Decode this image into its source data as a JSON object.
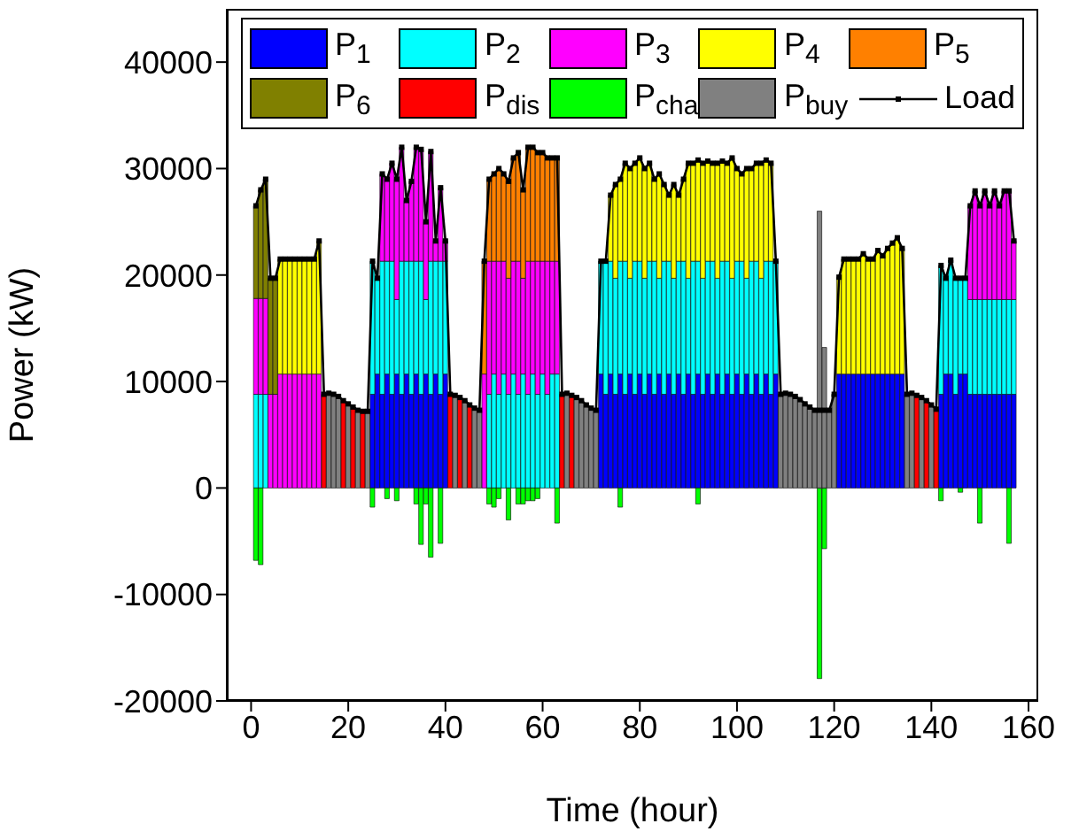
{
  "chart_data": {
    "type": "bar",
    "stacked": true,
    "xlabel": "Time (hour)",
    "ylabel": "Power (kW)",
    "xlim": [
      -5,
      162
    ],
    "xticks": [
      0,
      20,
      40,
      60,
      80,
      100,
      120,
      140,
      160
    ],
    "ylim": [
      -20000,
      45000
    ],
    "yticks": [
      -20000,
      -10000,
      0,
      10000,
      20000,
      30000,
      40000
    ],
    "legend": "top",
    "marker": "square",
    "line_style": "solid",
    "x": [
      1,
      2,
      3,
      4,
      5,
      6,
      7,
      8,
      9,
      10,
      11,
      12,
      13,
      14,
      15,
      16,
      17,
      18,
      19,
      20,
      21,
      22,
      23,
      24,
      25,
      26,
      27,
      28,
      29,
      30,
      31,
      32,
      33,
      34,
      35,
      36,
      37,
      38,
      39,
      40,
      41,
      42,
      43,
      44,
      45,
      46,
      47,
      48,
      49,
      50,
      51,
      52,
      53,
      54,
      55,
      56,
      57,
      58,
      59,
      60,
      61,
      62,
      63,
      64,
      65,
      66,
      67,
      68,
      69,
      70,
      71,
      72,
      73,
      74,
      75,
      76,
      77,
      78,
      79,
      80,
      81,
      82,
      83,
      84,
      85,
      86,
      87,
      88,
      89,
      90,
      91,
      92,
      93,
      94,
      95,
      96,
      97,
      98,
      99,
      100,
      101,
      102,
      103,
      104,
      105,
      106,
      107,
      108,
      109,
      110,
      111,
      112,
      113,
      114,
      115,
      116,
      117,
      118,
      119,
      120,
      121,
      122,
      123,
      124,
      125,
      126,
      127,
      128,
      129,
      130,
      131,
      132,
      133,
      134,
      135,
      136,
      137,
      138,
      139,
      140,
      141,
      142,
      143,
      144,
      145,
      146,
      147,
      148,
      149,
      150,
      151,
      152,
      153,
      154,
      155,
      156,
      157
    ],
    "series": [
      {
        "name": "P$_{1}$",
        "color": "#0000ff",
        "values": [
          null,
          null,
          null,
          null,
          null,
          null,
          null,
          null,
          null,
          null,
          null,
          null,
          null,
          null,
          null,
          null,
          null,
          null,
          null,
          null,
          null,
          null,
          null,
          null,
          8800,
          10700,
          8800,
          10700,
          8800,
          10700,
          8800,
          10700,
          8800,
          10700,
          8800,
          10700,
          8800,
          10700,
          8800,
          10700,
          null,
          null,
          null,
          null,
          null,
          null,
          null,
          null,
          null,
          null,
          null,
          null,
          null,
          null,
          null,
          null,
          null,
          null,
          null,
          null,
          null,
          null,
          null,
          null,
          null,
          null,
          null,
          null,
          null,
          null,
          null,
          10700,
          8800,
          10700,
          8800,
          10700,
          8800,
          10700,
          8800,
          10700,
          8800,
          10700,
          8800,
          10700,
          8800,
          10700,
          8800,
          10700,
          8800,
          10700,
          8800,
          10700,
          8800,
          10700,
          8800,
          10700,
          8800,
          10700,
          8800,
          10700,
          8800,
          10700,
          8800,
          10700,
          8800,
          10700,
          8800,
          10700,
          null,
          null,
          null,
          null,
          null,
          null,
          null,
          null,
          null,
          null,
          null,
          null,
          10700,
          10700,
          10700,
          10700,
          10700,
          10700,
          10700,
          10700,
          10700,
          10700,
          10700,
          10700,
          10700,
          10700,
          null,
          null,
          null,
          null,
          null,
          null,
          null,
          8800,
          10700,
          10700,
          8800,
          10700,
          10700,
          8800,
          8800,
          8800,
          8800,
          8800,
          8800,
          8800,
          8800,
          8800,
          8800
        ]
      },
      {
        "name": "P$_{2}$",
        "color": "#00ffff",
        "values": [
          8800,
          8800,
          8800,
          null,
          null,
          null,
          null,
          null,
          null,
          null,
          null,
          null,
          null,
          null,
          null,
          null,
          null,
          null,
          null,
          null,
          null,
          null,
          null,
          null,
          12500,
          9000,
          12500,
          10600,
          12500,
          7000,
          12500,
          10600,
          12500,
          10600,
          12500,
          7000,
          12500,
          10600,
          12500,
          10600,
          null,
          null,
          null,
          null,
          null,
          null,
          null,
          null,
          8800,
          10700,
          8800,
          10700,
          8800,
          10700,
          8800,
          10700,
          8800,
          10700,
          8800,
          10700,
          8800,
          10700,
          10700,
          null,
          null,
          null,
          null,
          null,
          null,
          null,
          null,
          10600,
          12500,
          10600,
          10900,
          10600,
          12500,
          9000,
          12500,
          10600,
          10900,
          10600,
          12500,
          9000,
          12500,
          10600,
          10900,
          10600,
          12500,
          9000,
          12500,
          10600,
          10900,
          10600,
          12500,
          9000,
          12500,
          10600,
          10900,
          10600,
          12500,
          9000,
          12500,
          10600,
          10900,
          10600,
          12500,
          10600,
          null,
          null,
          null,
          null,
          null,
          null,
          null,
          null,
          null,
          null,
          null,
          null,
          null,
          null,
          null,
          null,
          null,
          null,
          null,
          null,
          null,
          null,
          null,
          null,
          null,
          null,
          null,
          null,
          null,
          null,
          null,
          null,
          null,
          12100,
          9000,
          10700,
          10900,
          9000,
          9000,
          8900,
          8900,
          8900,
          8900,
          8900,
          8900,
          8900,
          8900,
          8900,
          8900
        ]
      },
      {
        "name": "P$_{3}$",
        "color": "#ff00ff",
        "values": [
          9000,
          9000,
          9000,
          8800,
          8800,
          10700,
          10700,
          10700,
          10700,
          10700,
          10700,
          10700,
          10700,
          10700,
          null,
          null,
          null,
          null,
          null,
          null,
          null,
          null,
          null,
          null,
          null,
          null,
          8200,
          7700,
          9200,
          11300,
          10700,
          5700,
          7500,
          10700,
          10500,
          7300,
          10300,
          1900,
          6900,
          1900,
          null,
          null,
          null,
          null,
          null,
          null,
          null,
          10700,
          12500,
          10600,
          12500,
          10600,
          10900,
          10600,
          12500,
          9000,
          12500,
          10600,
          12500,
          10600,
          12500,
          10600,
          10600,
          null,
          null,
          null,
          null,
          null,
          null,
          null,
          null,
          null,
          null,
          null,
          null,
          null,
          null,
          null,
          null,
          null,
          null,
          null,
          null,
          null,
          null,
          null,
          null,
          null,
          null,
          null,
          null,
          null,
          null,
          null,
          null,
          null,
          null,
          null,
          null,
          null,
          null,
          null,
          null,
          null,
          null,
          null,
          null,
          null,
          null,
          null,
          null,
          null,
          null,
          null,
          null,
          null,
          null,
          null,
          null,
          null,
          null,
          null,
          null,
          null,
          null,
          null,
          null,
          null,
          null,
          null,
          null,
          null,
          null,
          null,
          null,
          null,
          null,
          null,
          null,
          null,
          null,
          null,
          null,
          null,
          null,
          null,
          null,
          8800,
          10200,
          8800,
          10200,
          8800,
          10200,
          8800,
          10200,
          10200,
          5500
        ]
      },
      {
        "name": "P$_{4}$",
        "color": "#ffff00",
        "values": [
          null,
          null,
          null,
          null,
          null,
          10800,
          10800,
          10800,
          10800,
          10800,
          10800,
          10800,
          10800,
          12500,
          null,
          null,
          null,
          null,
          null,
          null,
          null,
          null,
          null,
          null,
          null,
          null,
          null,
          null,
          null,
          null,
          null,
          null,
          null,
          null,
          null,
          null,
          null,
          null,
          null,
          null,
          null,
          null,
          null,
          null,
          null,
          null,
          null,
          null,
          null,
          null,
          null,
          null,
          null,
          null,
          null,
          null,
          null,
          null,
          null,
          null,
          null,
          null,
          null,
          null,
          null,
          null,
          null,
          null,
          null,
          null,
          null,
          null,
          null,
          6200,
          8800,
          7700,
          9200,
          10300,
          9200,
          9700,
          10300,
          9200,
          7700,
          9800,
          7200,
          6200,
          8800,
          6200,
          7700,
          10800,
          9200,
          9500,
          10800,
          9400,
          9200,
          10800,
          9400,
          9200,
          11300,
          8700,
          8200,
          10300,
          8700,
          9200,
          10800,
          9500,
          9200,
          null,
          null,
          null,
          null,
          null,
          null,
          null,
          null,
          null,
          null,
          null,
          null,
          null,
          9100,
          10800,
          10800,
          10800,
          10800,
          11300,
          10800,
          10800,
          11600,
          11100,
          11800,
          12300,
          12800,
          11800,
          null,
          null,
          null,
          null,
          null,
          null,
          null,
          null,
          null,
          null,
          null,
          null,
          null,
          null,
          null,
          null,
          null,
          null,
          null,
          null,
          null,
          null,
          null
        ]
      },
      {
        "name": "P$_{5}$",
        "color": "#ff8000",
        "values": [
          null,
          null,
          null,
          null,
          null,
          null,
          null,
          null,
          null,
          null,
          null,
          null,
          null,
          null,
          null,
          null,
          null,
          null,
          null,
          null,
          null,
          null,
          null,
          null,
          null,
          null,
          null,
          null,
          null,
          null,
          null,
          null,
          null,
          null,
          null,
          null,
          null,
          null,
          null,
          null,
          null,
          null,
          null,
          null,
          null,
          null,
          null,
          10600,
          7700,
          8200,
          8700,
          8200,
          9100,
          9700,
          10200,
          8300,
          10700,
          10700,
          10200,
          10200,
          9700,
          9700,
          9700,
          null,
          null,
          null,
          null,
          null,
          null,
          null,
          null,
          null,
          null,
          null,
          null,
          null,
          null,
          null,
          null,
          null,
          null,
          null,
          null,
          null,
          null,
          null,
          null,
          null,
          null,
          null,
          null,
          null,
          null,
          null,
          null,
          null,
          null,
          null,
          null,
          null,
          null,
          null,
          null,
          null,
          null,
          null,
          null,
          null,
          null,
          null,
          null,
          null,
          null,
          null,
          null,
          null,
          null,
          null,
          null,
          null,
          null,
          null,
          null,
          null,
          null,
          null,
          null,
          null,
          null,
          null,
          null,
          null,
          null,
          null,
          null,
          null,
          null,
          null,
          null,
          null,
          null,
          null,
          null,
          null,
          null,
          null,
          null,
          null,
          null,
          null,
          null,
          null,
          null,
          null,
          null,
          null,
          null
        ]
      },
      {
        "name": "P$_{6}$",
        "color": "#808000",
        "values": [
          8700,
          10200,
          11200,
          10900,
          10900,
          null,
          null,
          null,
          null,
          null,
          null,
          null,
          null,
          null,
          null,
          null,
          null,
          null,
          null,
          null,
          null,
          null,
          null,
          null,
          null,
          null,
          null,
          null,
          null,
          null,
          null,
          null,
          null,
          null,
          null,
          null,
          null,
          null,
          null,
          null,
          null,
          null,
          null,
          null,
          null,
          null,
          null,
          null,
          null,
          null,
          null,
          null,
          null,
          null,
          null,
          null,
          null,
          null,
          null,
          null,
          null,
          null,
          null,
          null,
          null,
          null,
          null,
          null,
          null,
          null,
          null,
          null,
          null,
          null,
          null,
          null,
          null,
          null,
          null,
          null,
          null,
          null,
          null,
          null,
          null,
          null,
          null,
          null,
          null,
          null,
          null,
          null,
          null,
          null,
          null,
          null,
          null,
          null,
          null,
          null,
          null,
          null,
          null,
          null,
          null,
          null,
          null,
          null,
          null,
          null,
          null,
          null,
          null,
          null,
          null,
          null,
          null,
          null,
          null,
          null,
          null,
          null,
          null,
          null,
          null,
          null,
          null,
          null,
          null,
          null,
          null,
          null,
          null,
          null,
          null,
          null,
          null,
          null,
          null,
          null,
          null,
          null,
          null,
          null,
          null,
          null,
          null,
          null,
          null,
          null,
          null,
          null,
          null,
          null,
          null,
          null,
          null
        ]
      },
      {
        "name": "P$_{dis}$",
        "color": "#ff0000",
        "values": [
          null,
          null,
          null,
          null,
          null,
          null,
          null,
          null,
          null,
          null,
          null,
          null,
          null,
          null,
          8800,
          null,
          null,
          null,
          8200,
          null,
          7600,
          null,
          7200,
          null,
          null,
          null,
          null,
          null,
          null,
          null,
          null,
          null,
          null,
          null,
          null,
          null,
          null,
          null,
          null,
          null,
          8800,
          null,
          8500,
          null,
          7800,
          null,
          null,
          null,
          null,
          null,
          null,
          null,
          null,
          null,
          null,
          null,
          null,
          null,
          null,
          null,
          null,
          null,
          null,
          8800,
          null,
          8700,
          null,
          null,
          null,
          null,
          null,
          null,
          null,
          null,
          null,
          null,
          null,
          null,
          null,
          null,
          null,
          null,
          null,
          null,
          null,
          null,
          null,
          null,
          null,
          null,
          null,
          null,
          null,
          null,
          null,
          null,
          null,
          null,
          null,
          null,
          null,
          null,
          null,
          null,
          null,
          null,
          null,
          null,
          null,
          null,
          null,
          null,
          null,
          null,
          null,
          null,
          null,
          null,
          null,
          null,
          null,
          null,
          null,
          null,
          null,
          null,
          null,
          null,
          null,
          null,
          null,
          null,
          null,
          null,
          null,
          null,
          8700,
          null,
          8200,
          null,
          7400,
          null,
          null,
          null,
          null,
          null,
          null,
          null,
          null,
          null,
          null,
          null,
          null,
          null,
          null,
          null,
          null
        ]
      },
      {
        "name": "P$_{cha}$",
        "color": "#00ff00",
        "values": [
          -6800,
          -7200,
          null,
          null,
          null,
          null,
          null,
          null,
          null,
          null,
          null,
          null,
          null,
          null,
          null,
          null,
          null,
          null,
          null,
          null,
          null,
          null,
          null,
          null,
          -1800,
          null,
          null,
          -1000,
          null,
          -1200,
          null,
          null,
          null,
          -1500,
          -5300,
          -1500,
          -6500,
          null,
          -5200,
          null,
          null,
          null,
          null,
          null,
          null,
          null,
          null,
          null,
          -1500,
          -1800,
          -1000,
          null,
          -3000,
          null,
          -1500,
          -1500,
          -1200,
          -1200,
          -1000,
          null,
          null,
          null,
          -3300,
          null,
          null,
          null,
          null,
          null,
          null,
          null,
          null,
          null,
          null,
          null,
          null,
          -1800,
          null,
          null,
          null,
          null,
          null,
          null,
          null,
          null,
          null,
          null,
          null,
          null,
          null,
          null,
          null,
          -1500,
          null,
          null,
          null,
          null,
          null,
          null,
          null,
          null,
          null,
          null,
          null,
          null,
          null,
          null,
          null,
          null,
          null,
          null,
          null,
          null,
          null,
          null,
          null,
          null,
          -17900,
          -5700,
          null,
          null,
          null,
          null,
          null,
          null,
          null,
          null,
          null,
          null,
          null,
          null,
          null,
          null,
          null,
          null,
          null,
          null,
          null,
          null,
          null,
          null,
          null,
          -1200,
          null,
          null,
          null,
          -400,
          null,
          null,
          null,
          -3300,
          null,
          null,
          null,
          null,
          null,
          -5200,
          null
        ]
      },
      {
        "name": "P$_{buy}$",
        "color": "#808080",
        "values": [
          null,
          null,
          null,
          null,
          null,
          null,
          null,
          null,
          null,
          null,
          null,
          null,
          null,
          null,
          null,
          8900,
          8800,
          8600,
          null,
          7900,
          null,
          7300,
          null,
          7200,
          null,
          null,
          null,
          null,
          null,
          null,
          null,
          null,
          null,
          null,
          null,
          null,
          null,
          null,
          null,
          null,
          null,
          8700,
          null,
          8200,
          null,
          7500,
          7300,
          null,
          null,
          null,
          null,
          null,
          null,
          null,
          null,
          null,
          null,
          null,
          null,
          null,
          null,
          null,
          null,
          null,
          8900,
          null,
          8500,
          8200,
          7800,
          7500,
          7300,
          null,
          null,
          null,
          null,
          null,
          null,
          null,
          null,
          null,
          null,
          null,
          null,
          null,
          null,
          null,
          null,
          null,
          null,
          null,
          null,
          null,
          null,
          null,
          null,
          null,
          null,
          null,
          null,
          null,
          null,
          null,
          null,
          null,
          null,
          null,
          null,
          null,
          8800,
          8900,
          8800,
          8600,
          8300,
          7900,
          7600,
          7300,
          26000,
          13200,
          7300,
          8800,
          null,
          null,
          null,
          null,
          null,
          null,
          null,
          null,
          null,
          null,
          null,
          null,
          null,
          null,
          8800,
          8900,
          null,
          8500,
          null,
          7800,
          null,
          null,
          null,
          null,
          null,
          null,
          null,
          null,
          null,
          null,
          null,
          null,
          null,
          null,
          null,
          null,
          null
        ]
      },
      {
        "name": "Load",
        "type": "line",
        "color": "#000000",
        "values": [
          26500,
          28000,
          29000,
          19700,
          19700,
          21500,
          21500,
          21500,
          21500,
          21500,
          21500,
          21500,
          21500,
          23200,
          8800,
          8900,
          8800,
          8600,
          8200,
          7900,
          7600,
          7300,
          7200,
          7200,
          21300,
          19700,
          29500,
          29000,
          30500,
          29000,
          32000,
          27000,
          28800,
          32000,
          31800,
          25000,
          31600,
          23200,
          28200,
          23200,
          8800,
          8700,
          8500,
          8200,
          7800,
          7500,
          7300,
          21300,
          29000,
          29500,
          30000,
          29500,
          28800,
          31000,
          31500,
          28000,
          32000,
          32000,
          31500,
          31500,
          31000,
          31000,
          31000,
          8800,
          8900,
          8700,
          8500,
          8200,
          7800,
          7500,
          7300,
          21300,
          21300,
          27500,
          28500,
          29000,
          30500,
          30000,
          30500,
          31000,
          30000,
          30500,
          29000,
          29500,
          28500,
          27500,
          28500,
          27500,
          29000,
          30500,
          30500,
          30800,
          30500,
          30700,
          30500,
          30500,
          30700,
          30500,
          31000,
          30000,
          29500,
          30000,
          30000,
          30500,
          30500,
          30800,
          30500,
          21300,
          8800,
          8900,
          8800,
          8600,
          8300,
          7900,
          7600,
          7300,
          7300,
          7300,
          7300,
          8800,
          19800,
          21500,
          21500,
          21500,
          21500,
          22000,
          21500,
          21500,
          22300,
          21800,
          22500,
          23000,
          23500,
          22500,
          8800,
          8900,
          8700,
          8500,
          8200,
          7800,
          7400,
          20900,
          19700,
          21400,
          19700,
          19700,
          19700,
          26500,
          27900,
          26500,
          27900,
          26500,
          27900,
          26500,
          27900,
          27900,
          23200
        ]
      }
    ]
  }
}
